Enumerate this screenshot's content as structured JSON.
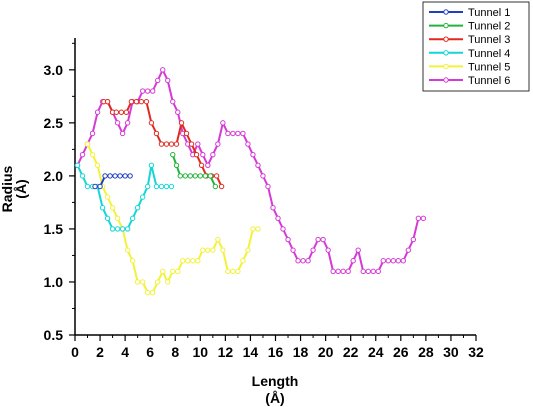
{
  "chart_data": {
    "type": "line",
    "title": "",
    "xlabel": "Length",
    "xlabel_unit": "(Å)",
    "ylabel": "Radius",
    "ylabel_unit": "(Å)",
    "xlim": [
      0,
      32
    ],
    "ylim": [
      0.5,
      3.3
    ],
    "xticks": [
      "0",
      "2",
      "4",
      "6",
      "8",
      "10",
      "12",
      "14",
      "16",
      "18",
      "20",
      "22",
      "24",
      "26",
      "28",
      "30",
      "32"
    ],
    "yticks": [
      "0.5",
      "1.0",
      "1.5",
      "2.0",
      "2.5",
      "3.0"
    ],
    "grid": false,
    "legend_position": "top-right",
    "series": [
      {
        "name": "Tunnel 1",
        "color": "#1f3fbf",
        "x": [
          1.6,
          2.0,
          2.4,
          2.8,
          3.2,
          3.6,
          4.0,
          4.4
        ],
        "y": [
          1.9,
          1.9,
          2.0,
          2.0,
          2.0,
          2.0,
          2.0,
          2.0
        ]
      },
      {
        "name": "Tunnel 2",
        "color": "#22b33a",
        "x": [
          7.8,
          8.1,
          8.4,
          8.8,
          9.2,
          9.6,
          10.0,
          10.4,
          10.8,
          11.2
        ],
        "y": [
          2.2,
          2.1,
          2.0,
          2.0,
          2.0,
          2.0,
          2.0,
          2.0,
          2.0,
          1.9
        ]
      },
      {
        "name": "Tunnel 3",
        "color": "#e02a1f",
        "x": [
          2.3,
          2.6,
          3.0,
          3.3,
          3.7,
          4.1,
          4.5,
          4.9,
          5.3,
          5.7,
          6.1,
          6.5,
          6.9,
          7.3,
          7.7,
          8.1,
          8.5,
          8.9,
          9.3,
          9.7,
          10.1,
          10.5,
          10.9,
          11.3,
          11.7
        ],
        "y": [
          2.7,
          2.7,
          2.6,
          2.6,
          2.6,
          2.6,
          2.7,
          2.7,
          2.7,
          2.7,
          2.5,
          2.4,
          2.3,
          2.3,
          2.3,
          2.3,
          2.5,
          2.4,
          2.3,
          2.2,
          2.1,
          2.0,
          2.0,
          2.0,
          1.9
        ]
      },
      {
        "name": "Tunnel 4",
        "color": "#14d6d6",
        "x": [
          0.2,
          0.6,
          1.0,
          1.4,
          1.8,
          2.2,
          2.6,
          3.0,
          3.4,
          3.8,
          4.2,
          4.6,
          5.0,
          5.4,
          5.8,
          6.1,
          6.5,
          6.9,
          7.3,
          7.7
        ],
        "y": [
          2.1,
          2.0,
          1.9,
          1.9,
          1.9,
          1.7,
          1.6,
          1.5,
          1.5,
          1.5,
          1.5,
          1.6,
          1.7,
          1.8,
          1.9,
          2.1,
          1.9,
          1.9,
          1.9,
          1.9
        ]
      },
      {
        "name": "Tunnel 5",
        "color": "#f2f23a",
        "x": [
          1.0,
          1.4,
          1.8,
          2.2,
          2.6,
          3.0,
          3.4,
          3.8,
          4.2,
          4.6,
          5.0,
          5.4,
          5.8,
          6.2,
          6.6,
          7.0,
          7.4,
          7.8,
          8.2,
          8.6,
          9.0,
          9.4,
          9.8,
          10.2,
          10.6,
          11.0,
          11.4,
          11.8,
          12.2,
          12.6,
          13.0,
          13.4,
          13.8,
          14.2,
          14.6
        ],
        "y": [
          2.3,
          2.2,
          2.1,
          1.9,
          1.8,
          1.7,
          1.6,
          1.5,
          1.3,
          1.2,
          1.0,
          1.0,
          0.9,
          0.9,
          1.0,
          1.1,
          1.0,
          1.1,
          1.1,
          1.2,
          1.2,
          1.2,
          1.2,
          1.3,
          1.3,
          1.3,
          1.4,
          1.3,
          1.1,
          1.1,
          1.1,
          1.2,
          1.3,
          1.5,
          1.5
        ]
      },
      {
        "name": "Tunnel 6",
        "color": "#d63ad6",
        "x": [
          0.2,
          0.6,
          1.0,
          1.4,
          1.8,
          2.2,
          2.6,
          3.0,
          3.4,
          3.8,
          4.2,
          4.6,
          5.0,
          5.4,
          5.8,
          6.2,
          6.6,
          7.0,
          7.4,
          7.8,
          8.2,
          8.6,
          9.0,
          9.4,
          9.8,
          10.2,
          10.6,
          11.0,
          11.4,
          11.8,
          12.2,
          12.6,
          13.0,
          13.4,
          13.8,
          14.2,
          14.6,
          15.0,
          15.4,
          15.8,
          16.2,
          16.6,
          17.0,
          17.4,
          17.8,
          18.2,
          18.6,
          19.0,
          19.4,
          19.8,
          20.2,
          20.6,
          21.0,
          21.4,
          21.8,
          22.2,
          22.6,
          23.0,
          23.4,
          23.8,
          24.2,
          24.6,
          25.0,
          25.4,
          25.8,
          26.2,
          26.6,
          27.0,
          27.4,
          27.8
        ],
        "y": [
          2.1,
          2.2,
          2.3,
          2.4,
          2.6,
          2.7,
          2.7,
          2.6,
          2.5,
          2.4,
          2.5,
          2.7,
          2.7,
          2.8,
          2.8,
          2.8,
          2.9,
          3.0,
          2.9,
          2.7,
          2.6,
          2.4,
          2.3,
          2.2,
          2.3,
          2.2,
          2.1,
          2.2,
          2.3,
          2.5,
          2.4,
          2.4,
          2.4,
          2.4,
          2.3,
          2.2,
          2.1,
          2.0,
          1.9,
          1.7,
          1.6,
          1.5,
          1.4,
          1.3,
          1.2,
          1.2,
          1.2,
          1.3,
          1.4,
          1.4,
          1.3,
          1.1,
          1.1,
          1.1,
          1.1,
          1.2,
          1.3,
          1.1,
          1.1,
          1.1,
          1.1,
          1.2,
          1.2,
          1.2,
          1.2,
          1.2,
          1.3,
          1.4,
          1.6,
          1.6
        ]
      }
    ]
  }
}
